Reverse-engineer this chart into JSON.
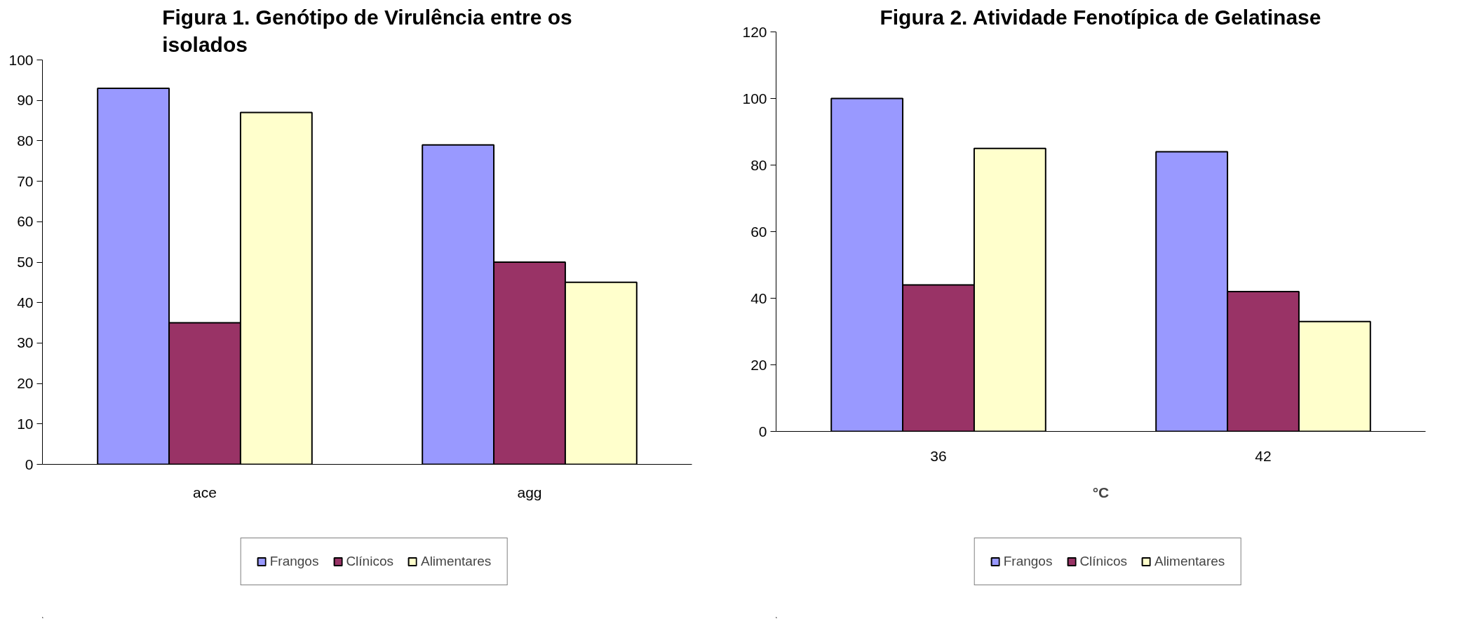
{
  "chart_data": [
    {
      "type": "bar",
      "title": "Figura 1. Genótipo de Virulência entre os isolados",
      "categories": [
        "ace",
        "agg"
      ],
      "series": [
        {
          "name": "Frangos",
          "color": "#9999ff",
          "values": [
            93,
            79
          ]
        },
        {
          "name": "Clínicos",
          "color": "#993366",
          "values": [
            35,
            50
          ]
        },
        {
          "name": "Alimentares",
          "color": "#ffffcc",
          "values": [
            87,
            45
          ]
        }
      ],
      "ylim": [
        0,
        100
      ],
      "yticks": [
        0,
        10,
        20,
        30,
        40,
        50,
        60,
        70,
        80,
        90,
        100
      ],
      "grid": false,
      "legend": "bottom"
    },
    {
      "type": "bar",
      "title": "Figura 2. Atividade Fenotípica de Gelatinase",
      "xlabel": "°C",
      "categories": [
        "36",
        "42"
      ],
      "series": [
        {
          "name": "Frangos",
          "color": "#9999ff",
          "values": [
            100,
            84
          ]
        },
        {
          "name": "Clínicos",
          "color": "#993366",
          "values": [
            44,
            42
          ]
        },
        {
          "name": "Alimentares",
          "color": "#ffffcc",
          "values": [
            85,
            33
          ]
        }
      ],
      "ylim": [
        0,
        120
      ],
      "yticks": [
        0,
        20,
        40,
        60,
        80,
        100,
        120
      ],
      "grid": false,
      "legend": "bottom"
    }
  ]
}
